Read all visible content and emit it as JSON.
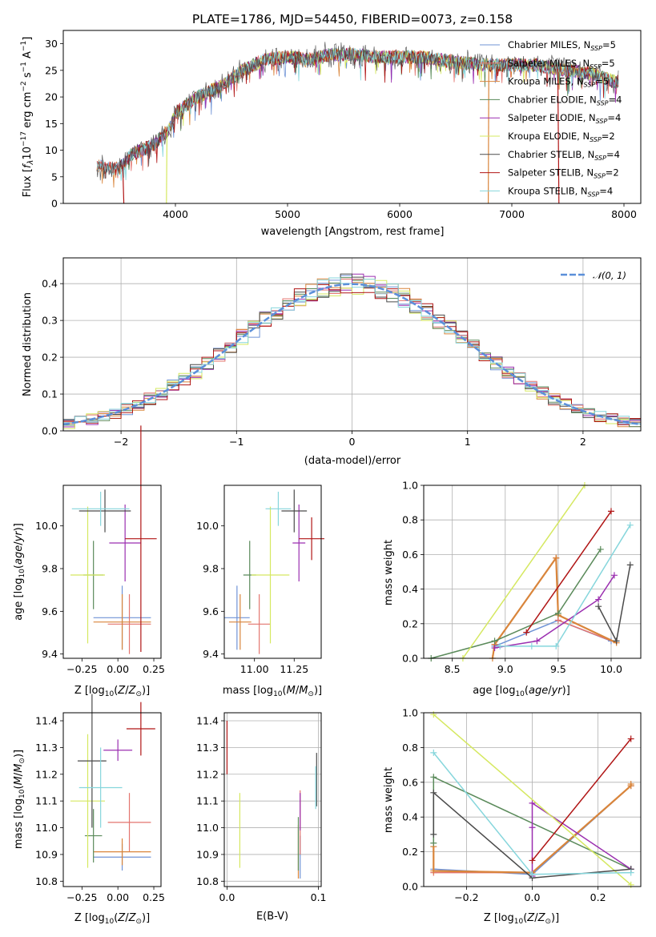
{
  "colors": {
    "Chabrier MILES": "#6f93d6",
    "Salpeter MILES": "#e3746e",
    "Kroupa MILES": "#d9853b",
    "Chabrier ELODIE": "#5a8a5a",
    "Salpeter ELODIE": "#9b2fb0",
    "Kroupa ELODIE": "#d5e860",
    "Chabrier STELIB": "#4a4a4a",
    "Salpeter STELIB": "#b01515",
    "Kroupa STELIB": "#86d6dc",
    "gauss": "#5b8fd9"
  },
  "chart_data": [
    {
      "id": "spectrum",
      "type": "line",
      "title": "PLATE=1786, MJD=54450, FIBERID=0073, z=0.158",
      "xlabel": "wavelength [Angstrom, rest frame]",
      "ylabel": "Flux [f_λ10^-17 erg cm^-2 s^-1 A^-1]",
      "xlim": [
        3000,
        8150
      ],
      "ylim": [
        0,
        32.5
      ],
      "xticks": [
        "4000",
        "5000",
        "6000",
        "7000",
        "8000"
      ],
      "yticks": [
        "0",
        "5",
        "10",
        "15",
        "20",
        "25",
        "30"
      ],
      "spectrum_anchors": [
        [
          3300,
          7
        ],
        [
          3500,
          6.5
        ],
        [
          3600,
          9
        ],
        [
          3800,
          11
        ],
        [
          3950,
          14
        ],
        [
          4000,
          17
        ],
        [
          4200,
          20
        ],
        [
          4400,
          22
        ],
        [
          4600,
          25
        ],
        [
          4800,
          27
        ],
        [
          5000,
          27.5
        ],
        [
          5200,
          27
        ],
        [
          5400,
          28
        ],
        [
          5600,
          28
        ],
        [
          5800,
          27.5
        ],
        [
          6000,
          27.5
        ],
        [
          6200,
          27.5
        ],
        [
          6500,
          26.5
        ],
        [
          6800,
          26
        ],
        [
          7200,
          26
        ],
        [
          7500,
          25
        ],
        [
          7700,
          24.5
        ],
        [
          7900,
          23
        ]
      ],
      "legend": [
        {
          "name": "Chabrier MILES",
          "nssp": "5"
        },
        {
          "name": "Salpeter MILES",
          "nssp": "5"
        },
        {
          "name": "Kroupa MILES",
          "nssp": "5"
        },
        {
          "name": "Chabrier ELODIE",
          "nssp": "4"
        },
        {
          "name": "Salpeter ELODIE",
          "nssp": "4"
        },
        {
          "name": "Kroupa ELODIE",
          "nssp": "2"
        },
        {
          "name": "Chabrier STELIB",
          "nssp": "4"
        },
        {
          "name": "Salpeter STELIB",
          "nssp": "2"
        },
        {
          "name": "Kroupa STELIB",
          "nssp": "4"
        }
      ],
      "legend_position": "right"
    },
    {
      "id": "residuals",
      "type": "line",
      "xlabel": "(data-model)/error",
      "ylabel": "Normed distribution",
      "xlim": [
        -2.5,
        2.5
      ],
      "ylim": [
        0,
        0.47
      ],
      "xticks": [
        "−2",
        "−1",
        "0",
        "1",
        "2"
      ],
      "yticks": [
        "0.0",
        "0.1",
        "0.2",
        "0.3",
        "0.4"
      ],
      "grid": true,
      "legend": "𝒩(0, 1)",
      "legend_position": "top-right",
      "bin_width": 0.1
    },
    {
      "id": "age_vs_Z",
      "type": "scatter",
      "xlabel": "Z [log10(Z/Z⊙)]",
      "ylabel": "age  [log10(age/yr)]",
      "xlim": [
        -0.38,
        0.3
      ],
      "ylim": [
        9.38,
        10.19
      ],
      "xticks": [
        "−0.25",
        "0.00",
        "0.25"
      ],
      "yticks": [
        "9.4",
        "9.6",
        "9.8",
        "10.0"
      ],
      "points": [
        {
          "model": "Chabrier MILES",
          "x": 0.03,
          "xerr": 0.2,
          "y": 9.57,
          "yerr": 0.15
        },
        {
          "model": "Salpeter MILES",
          "x": 0.08,
          "xerr": 0.15,
          "y": 9.54,
          "yerr": 0.14
        },
        {
          "model": "Kroupa MILES",
          "x": 0.03,
          "xerr": 0.2,
          "y": 9.55,
          "yerr": 0.13
        },
        {
          "model": "Chabrier ELODIE",
          "x": -0.17,
          "xerr": 0.07,
          "y": 9.77,
          "yerr": 0.16
        },
        {
          "model": "Salpeter ELODIE",
          "x": 0.05,
          "xerr": 0.11,
          "y": 9.92,
          "yerr": 0.18
        },
        {
          "model": "Kroupa ELODIE",
          "x": -0.21,
          "xerr": 0.12,
          "y": 9.77,
          "yerr": 0.32
        },
        {
          "model": "Chabrier STELIB",
          "x": -0.09,
          "xerr": 0.18,
          "y": 10.07,
          "yerr": 0.1
        },
        {
          "model": "Salpeter STELIB",
          "x": 0.16,
          "xerr": 0.11,
          "y": 9.94,
          "yerr": 0.53
        },
        {
          "model": "Kroupa STELIB",
          "x": -0.12,
          "xerr": 0.2,
          "y": 10.08,
          "yerr": 0.08
        }
      ]
    },
    {
      "id": "age_vs_mass",
      "type": "scatter",
      "xlabel": "mass [log10(M/M⊙)]",
      "xlim": [
        10.81,
        11.42
      ],
      "ylim": [
        9.38,
        10.19
      ],
      "xticks": [
        "11.00",
        "11.25"
      ],
      "yticks": [
        "9.4",
        "9.6",
        "9.8",
        "10.0"
      ],
      "points": [
        {
          "model": "Chabrier MILES",
          "x": 10.89,
          "xerr": 0.08,
          "y": 9.57,
          "yerr": 0.15
        },
        {
          "model": "Salpeter MILES",
          "x": 11.03,
          "xerr": 0.07,
          "y": 9.54,
          "yerr": 0.14
        },
        {
          "model": "Kroupa MILES",
          "x": 10.91,
          "xerr": 0.07,
          "y": 9.55,
          "yerr": 0.13
        },
        {
          "model": "Chabrier ELODIE",
          "x": 10.97,
          "xerr": 0.04,
          "y": 9.77,
          "yerr": 0.16
        },
        {
          "model": "Salpeter ELODIE",
          "x": 11.28,
          "xerr": 0.04,
          "y": 9.92,
          "yerr": 0.18
        },
        {
          "model": "Kroupa ELODIE",
          "x": 11.1,
          "xerr": 0.12,
          "y": 9.77,
          "yerr": 0.32
        },
        {
          "model": "Chabrier STELIB",
          "x": 11.25,
          "xerr": 0.08,
          "y": 10.07,
          "yerr": 0.1
        },
        {
          "model": "Salpeter STELIB",
          "x": 11.36,
          "xerr": 0.08,
          "y": 9.94,
          "yerr": 0.1
        },
        {
          "model": "Kroupa STELIB",
          "x": 11.15,
          "xerr": 0.08,
          "y": 10.08,
          "yerr": 0.08
        }
      ]
    },
    {
      "id": "weight_vs_age",
      "type": "line",
      "xlabel": "age  [log10(age/yr)]",
      "ylabel": "mass weight",
      "xlim": [
        8.23,
        10.28
      ],
      "ylim": [
        0,
        1
      ],
      "xticks": [
        "8.5",
        "9.0",
        "9.5",
        "10.0"
      ],
      "yticks": [
        "0.0",
        "0.2",
        "0.4",
        "0.6",
        "0.8",
        "1.0"
      ],
      "grid": true,
      "series": [
        {
          "model": "Chabrier MILES",
          "points": [
            [
              8.9,
              0.07
            ],
            [
              9.5,
              0.22
            ],
            [
              10.0,
              0.1
            ]
          ]
        },
        {
          "model": "Salpeter MILES",
          "points": [
            [
              8.9,
              0.08
            ],
            [
              9.48,
              0.58
            ],
            [
              9.5,
              0.22
            ],
            [
              10.05,
              0.09
            ]
          ]
        },
        {
          "model": "Kroupa MILES",
          "points": [
            [
              8.88,
              0.0
            ],
            [
              8.9,
              0.08
            ],
            [
              9.48,
              0.58
            ],
            [
              9.5,
              0.25
            ],
            [
              10.05,
              0.09
            ]
          ]
        },
        {
          "model": "Chabrier ELODIE",
          "points": [
            [
              8.3,
              0.0
            ],
            [
              8.9,
              0.1
            ],
            [
              9.5,
              0.26
            ],
            [
              9.9,
              0.63
            ]
          ]
        },
        {
          "model": "Salpeter ELODIE",
          "points": [
            [
              8.9,
              0.06
            ],
            [
              9.3,
              0.1
            ],
            [
              9.88,
              0.34
            ],
            [
              10.03,
              0.48
            ]
          ]
        },
        {
          "model": "Kroupa ELODIE",
          "points": [
            [
              8.6,
              0.0
            ],
            [
              9.75,
              1.0
            ]
          ]
        },
        {
          "model": "Chabrier STELIB",
          "points": [
            [
              9.88,
              0.3
            ],
            [
              10.05,
              0.1
            ],
            [
              10.18,
              0.54
            ]
          ]
        },
        {
          "model": "Salpeter STELIB",
          "points": [
            [
              9.2,
              0.15
            ],
            [
              10.0,
              0.85
            ]
          ]
        },
        {
          "model": "Kroupa STELIB",
          "points": [
            [
              8.95,
              0.07
            ],
            [
              9.25,
              0.07
            ],
            [
              9.48,
              0.07
            ],
            [
              10.18,
              0.77
            ]
          ]
        }
      ]
    },
    {
      "id": "mass_vs_Z",
      "type": "scatter",
      "xlabel": "Z [log10(Z/Z⊙)]",
      "ylabel": "mass [log10(M/M⊙)]",
      "xlim": [
        -0.38,
        0.3
      ],
      "ylim": [
        10.78,
        11.43
      ],
      "xticks": [
        "−0.25",
        "0.00",
        "0.25"
      ],
      "yticks": [
        "10.8",
        "10.9",
        "11.0",
        "11.1",
        "11.2",
        "11.3",
        "11.4"
      ],
      "points": [
        {
          "model": "Chabrier MILES",
          "x": 0.03,
          "xerr": 0.2,
          "y": 10.89,
          "yerr": 0.05
        },
        {
          "model": "Salpeter MILES",
          "x": 0.08,
          "xerr": 0.15,
          "y": 11.02,
          "yerr": 0.11
        },
        {
          "model": "Kroupa MILES",
          "x": 0.03,
          "xerr": 0.2,
          "y": 10.91,
          "yerr": 0.05
        },
        {
          "model": "Chabrier ELODIE",
          "x": -0.17,
          "xerr": 0.06,
          "y": 10.97,
          "yerr": 0.1
        },
        {
          "model": "Salpeter ELODIE",
          "x": 0.0,
          "xerr": 0.1,
          "y": 11.29,
          "yerr": 0.04
        },
        {
          "model": "Kroupa ELODIE",
          "x": -0.21,
          "xerr": 0.12,
          "y": 11.1,
          "yerr": 0.25
        },
        {
          "model": "Chabrier STELIB",
          "x": -0.18,
          "xerr": 0.1,
          "y": 11.25,
          "yerr": 0.25
        },
        {
          "model": "Salpeter STELIB",
          "x": 0.16,
          "xerr": 0.1,
          "y": 11.37,
          "yerr": 0.1
        },
        {
          "model": "Kroupa STELIB",
          "x": -0.12,
          "xerr": 0.15,
          "y": 11.15,
          "yerr": 0.15
        }
      ]
    },
    {
      "id": "mass_vs_ebv",
      "type": "scatter",
      "xlabel": "E(B-V)",
      "xlim": [
        -0.003,
        0.103
      ],
      "ylim": [
        10.78,
        11.43
      ],
      "xticks": [
        "0.0",
        "0.1"
      ],
      "yticks": [
        "10.8",
        "10.9",
        "11.0",
        "11.1",
        "11.2",
        "11.3",
        "11.4"
      ],
      "grid": true,
      "points": [
        {
          "model": "Chabrier MILES",
          "x": 0.08,
          "y": 10.89,
          "yerr": 0.08
        },
        {
          "model": "Salpeter MILES",
          "x": 0.08,
          "y": 11.02,
          "yerr": 0.12
        },
        {
          "model": "Kroupa MILES",
          "x": 0.078,
          "y": 10.91,
          "yerr": 0.1
        },
        {
          "model": "Chabrier ELODIE",
          "x": 0.078,
          "y": 10.94,
          "yerr": 0.1
        },
        {
          "model": "Salpeter ELODIE",
          "x": 0.08,
          "y": 11.06,
          "yerr": 0.07
        },
        {
          "model": "Kroupa ELODIE",
          "x": 0.014,
          "y": 10.99,
          "yerr": 0.14
        },
        {
          "model": "Chabrier STELIB",
          "x": 0.098,
          "y": 11.18,
          "yerr": 0.1
        },
        {
          "model": "Salpeter STELIB",
          "x": 0.0,
          "y": 11.3,
          "yerr": 0.1
        },
        {
          "model": "Kroupa STELIB",
          "x": 0.097,
          "y": 11.15,
          "yerr": 0.08
        }
      ]
    },
    {
      "id": "weight_vs_Z",
      "type": "line",
      "xlabel": "Z [log10(Z/Z⊙)]",
      "ylabel": "mass weight",
      "xlim": [
        -0.33,
        0.33
      ],
      "ylim": [
        0,
        1
      ],
      "xticks": [
        "−0.2",
        "0.0",
        "0.2"
      ],
      "yticks": [
        "0.0",
        "0.2",
        "0.4",
        "0.6",
        "0.8",
        "1.0"
      ],
      "grid": true,
      "series": [
        {
          "model": "Chabrier MILES",
          "points": [
            [
              -0.3,
              0.1
            ],
            [
              0.0,
              0.07
            ],
            [
              0.3,
              0.58
            ]
          ]
        },
        {
          "model": "Salpeter MILES",
          "points": [
            [
              -0.3,
              0.08
            ],
            [
              0.0,
              0.08
            ],
            [
              0.3,
              0.58
            ]
          ]
        },
        {
          "model": "Kroupa MILES",
          "points": [
            [
              -0.3,
              0.23
            ],
            [
              -0.3,
              0.09
            ],
            [
              0.0,
              0.08
            ],
            [
              0.3,
              0.58
            ],
            [
              0.3,
              0.59
            ]
          ]
        },
        {
          "model": "Chabrier ELODIE",
          "points": [
            [
              -0.3,
              0.25
            ],
            [
              -0.3,
              0.63
            ],
            [
              0.3,
              0.1
            ]
          ]
        },
        {
          "model": "Salpeter ELODIE",
          "points": [
            [
              0.3,
              0.1
            ],
            [
              0.0,
              0.48
            ],
            [
              0.0,
              0.34
            ],
            [
              0.0,
              0.06
            ]
          ]
        },
        {
          "model": "Kroupa ELODIE",
          "points": [
            [
              -0.3,
              0.99
            ],
            [
              0.3,
              0.01
            ]
          ]
        },
        {
          "model": "Chabrier STELIB",
          "points": [
            [
              -0.3,
              0.3
            ],
            [
              -0.3,
              0.54
            ],
            [
              0.0,
              0.05
            ],
            [
              0.3,
              0.1
            ]
          ]
        },
        {
          "model": "Salpeter STELIB",
          "points": [
            [
              0.0,
              0.15
            ],
            [
              0.3,
              0.85
            ]
          ]
        },
        {
          "model": "Kroupa STELIB",
          "points": [
            [
              -0.3,
              0.77
            ],
            [
              0.0,
              0.07
            ],
            [
              0.3,
              0.08
            ]
          ]
        }
      ]
    }
  ]
}
